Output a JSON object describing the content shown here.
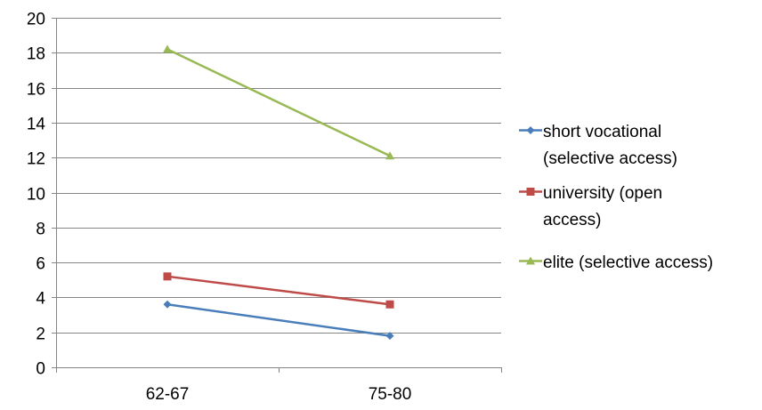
{
  "chart_data": {
    "type": "line",
    "title": "",
    "xlabel": "",
    "ylabel": "",
    "categories": [
      "62-67",
      "75-80"
    ],
    "ylim": [
      0,
      20
    ],
    "yticks": [
      "0",
      "2",
      "4",
      "6",
      "8",
      "10",
      "12",
      "14",
      "16",
      "18",
      "20"
    ],
    "grid": true,
    "legend_position": "right",
    "series": [
      {
        "name": "short vocational (selective access)",
        "legend_lines": [
          "short vocational",
          "(selective access)"
        ],
        "values": [
          3.6,
          1.8
        ],
        "color": "#4a7ebb",
        "marker": "diamond"
      },
      {
        "name": "university (open access)",
        "legend_lines": [
          "university (open",
          "access)"
        ],
        "values": [
          5.2,
          3.6
        ],
        "color": "#be4b48",
        "marker": "square"
      },
      {
        "name": "elite (selective access)",
        "legend_lines": [
          "elite (selective access)"
        ],
        "values": [
          18.2,
          12.1
        ],
        "color": "#98b954",
        "marker": "triangle"
      }
    ]
  }
}
